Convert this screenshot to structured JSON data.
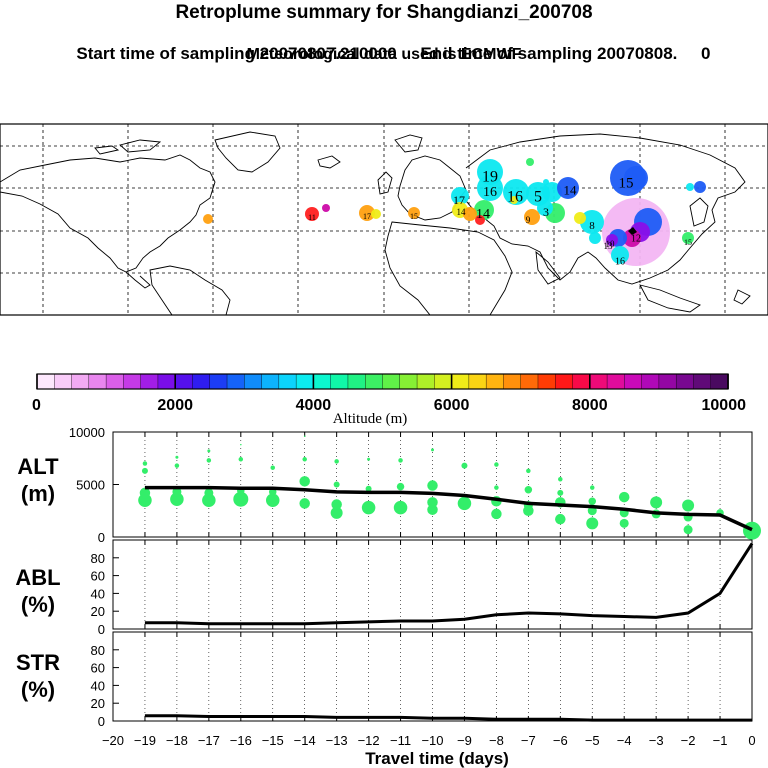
{
  "header": {
    "title": "Retroplume summary for Shangdianzi_200708",
    "start_label": "Start time of sampling 20070807.210000",
    "end_label": "End time of sampling 20070808.",
    "end_suffix": "0",
    "met_label": "Meteorological data used is ECMWF"
  },
  "colorbar": {
    "label": "Altitude (m)",
    "ticks": [
      0,
      2000,
      4000,
      6000,
      8000,
      10000
    ],
    "tick_labels": [
      "0",
      "2000",
      "4000",
      "6000",
      "8000",
      "10000"
    ],
    "range": [
      0,
      10000
    ],
    "colors": [
      "#fde8fd",
      "#f9ccf9",
      "#f2aaf3",
      "#e986ef",
      "#db5fe9",
      "#c53ae6",
      "#a21ee6",
      "#7a0ee8",
      "#5510ec",
      "#2f1df0",
      "#1c3df5",
      "#1563f8",
      "#108cfb",
      "#0db3fd",
      "#0cd4fc",
      "#0cecf0",
      "#0cf7cf",
      "#10f7a8",
      "#20f284",
      "#3cf064",
      "#60f048",
      "#86f034",
      "#aef028",
      "#d4f020",
      "#f0ec18",
      "#fad414",
      "#ffb410",
      "#ff900c",
      "#ff6a08",
      "#ff3c04",
      "#ff1818",
      "#f80a48",
      "#ee0a78",
      "#e00c9c",
      "#ca0ab8",
      "#b008b8",
      "#9406a4",
      "#780890",
      "#600a78",
      "#4a0a60"
    ]
  },
  "map": {
    "plume_labels": [
      "19",
      "16",
      "16",
      "5",
      "14",
      "15",
      "17",
      "14",
      "14",
      "8",
      "10",
      "16",
      "12",
      "9",
      "3",
      "15",
      "17",
      "15",
      "13",
      "11"
    ],
    "plume_colors": {
      "cyan": "#0ce8f0",
      "blue": "#1d5cf5",
      "green": "#33ee6a",
      "yellow": "#f0ec18",
      "orange": "#ffa010",
      "red": "#ff2020",
      "pink": "#f3b6f3",
      "magenta": "#cc0aa8",
      "purple": "#8a0ee8"
    }
  },
  "panels": {
    "alt_label_1": "ALT",
    "alt_label_2": "(m)",
    "abl_label_1": "ABL",
    "abl_label_2": "(%)",
    "str_label_1": "STR",
    "str_label_2": "(%)",
    "xlabel": "Travel time (days)",
    "x_ticks": [
      -20,
      -19,
      -18,
      -17,
      -16,
      -15,
      -14,
      -13,
      -12,
      -11,
      -10,
      -9,
      -8,
      -7,
      -6,
      -5,
      -4,
      -3,
      -2,
      -1,
      0
    ],
    "x_tick_labels": [
      "−20",
      "−19",
      "−18",
      "−17",
      "−16",
      "−15",
      "−14",
      "−13",
      "−12",
      "−11",
      "−10",
      "−9",
      "−8",
      "−7",
      "−6",
      "−5",
      "−4",
      "−3",
      "−2",
      "−1",
      "0"
    ],
    "alt_ticks": [
      0,
      5000,
      10000
    ],
    "alt_tick_labels": [
      "0",
      "5000",
      "10000"
    ],
    "pct_ticks": [
      0,
      20,
      40,
      60,
      80
    ],
    "pct_tick_labels": [
      "0",
      "20",
      "40",
      "60",
      "80"
    ],
    "dot_color": "#33ee6a"
  },
  "chart_data": {
    "type": "line",
    "x": [
      -19,
      -18,
      -17,
      -16,
      -15,
      -14,
      -13,
      -12,
      -11,
      -10,
      -9,
      -8,
      -7,
      -6,
      -5,
      -4,
      -3,
      -2,
      -1,
      0
    ],
    "xlabel": "Travel time (days)",
    "xlim": [
      -20,
      0
    ],
    "series": [
      {
        "name": "ALT mean (m)",
        "ylim": [
          0,
          10000
        ],
        "values": [
          4700,
          4700,
          4700,
          4650,
          4650,
          4500,
          4300,
          4250,
          4250,
          4150,
          3950,
          3600,
          3200,
          3050,
          2900,
          2650,
          2300,
          2150,
          2100,
          700
        ]
      },
      {
        "name": "ABL (%)",
        "ylim": [
          0,
          100
        ],
        "values": [
          7,
          7,
          6,
          6,
          6,
          6,
          7,
          8,
          9,
          9,
          11,
          16,
          18,
          17,
          15,
          14,
          13,
          18,
          40,
          96
        ]
      },
      {
        "name": "STR (%)",
        "ylim": [
          0,
          100
        ],
        "values": [
          6,
          6,
          5,
          5,
          5,
          5,
          4,
          4,
          4,
          3,
          3,
          2,
          2,
          2,
          1,
          1,
          1,
          1,
          1,
          1
        ]
      }
    ],
    "alt_points": [
      [
        -19,
        3500,
        9
      ],
      [
        -19,
        4200,
        7
      ],
      [
        -19,
        6300,
        4
      ],
      [
        -19,
        7000,
        3
      ],
      [
        -18,
        3600,
        9
      ],
      [
        -18,
        4300,
        6
      ],
      [
        -18,
        6800,
        3
      ],
      [
        -18,
        7600,
        2
      ],
      [
        -17,
        3500,
        9
      ],
      [
        -17,
        4200,
        6
      ],
      [
        -17,
        7300,
        3
      ],
      [
        -17,
        8200,
        2
      ],
      [
        -16,
        3600,
        10
      ],
      [
        -16,
        4400,
        5
      ],
      [
        -16,
        7400,
        3
      ],
      [
        -16,
        8800,
        1
      ],
      [
        -15,
        3500,
        9
      ],
      [
        -15,
        4300,
        5
      ],
      [
        -15,
        6600,
        3
      ],
      [
        -14,
        3200,
        7
      ],
      [
        -14,
        5300,
        7
      ],
      [
        -14,
        7400,
        3
      ],
      [
        -14,
        9600,
        1
      ],
      [
        -13,
        2300,
        8
      ],
      [
        -13,
        3100,
        7
      ],
      [
        -13,
        5000,
        4
      ],
      [
        -13,
        7200,
        3
      ],
      [
        -12,
        2800,
        9
      ],
      [
        -12,
        4600,
        4
      ],
      [
        -12,
        7400,
        2
      ],
      [
        -11,
        2800,
        9
      ],
      [
        -11,
        4800,
        5
      ],
      [
        -11,
        7300,
        3
      ],
      [
        -10,
        2600,
        7
      ],
      [
        -10,
        3300,
        7
      ],
      [
        -10,
        4900,
        7
      ],
      [
        -10,
        8300,
        2
      ],
      [
        -9,
        3200,
        9
      ],
      [
        -9,
        6800,
        4
      ],
      [
        -8,
        2200,
        7
      ],
      [
        -8,
        3400,
        7
      ],
      [
        -8,
        4700,
        3
      ],
      [
        -8,
        6900,
        3
      ],
      [
        -7,
        2500,
        7
      ],
      [
        -7,
        3000,
        6
      ],
      [
        -7,
        4500,
        5
      ],
      [
        -7,
        6300,
        3
      ],
      [
        -6,
        1700,
        7
      ],
      [
        -6,
        3300,
        7
      ],
      [
        -6,
        4200,
        4
      ],
      [
        -6,
        5500,
        3
      ],
      [
        -5,
        1300,
        8
      ],
      [
        -5,
        2500,
        6
      ],
      [
        -5,
        3400,
        5
      ],
      [
        -5,
        4700,
        3
      ],
      [
        -4,
        1300,
        6
      ],
      [
        -4,
        2300,
        6
      ],
      [
        -4,
        3800,
        7
      ],
      [
        -3,
        2200,
        6
      ],
      [
        -3,
        3300,
        8
      ],
      [
        -2,
        700,
        6
      ],
      [
        -2,
        1900,
        6
      ],
      [
        -2,
        3000,
        8
      ],
      [
        -1,
        2300,
        5
      ],
      [
        0,
        600,
        12
      ],
      [
        0,
        800,
        8
      ]
    ]
  }
}
